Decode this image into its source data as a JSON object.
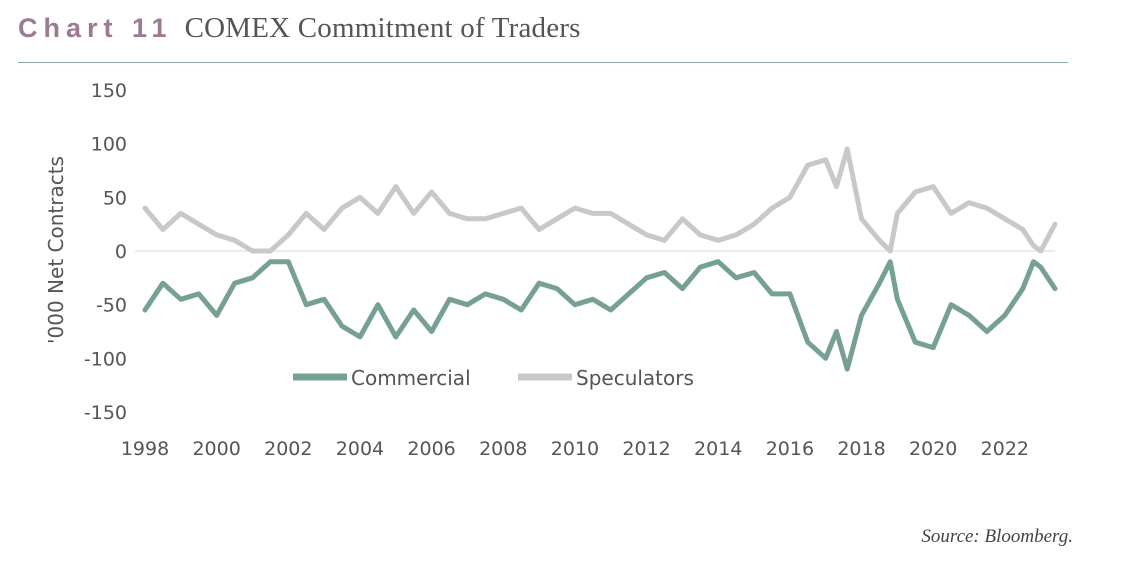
{
  "header": {
    "label": "Chart 11",
    "title": "COMEX Commitment of Traders"
  },
  "source": "Source: Bloomberg.",
  "colors": {
    "label": "#9c7a92",
    "commercial": "#77a095",
    "speculators": "#c8c8c8",
    "rule": "#8aa8a0",
    "zero_line": "#d9d9d9"
  },
  "chart_data": {
    "type": "line",
    "title": "COMEX Commitment of Traders",
    "xlabel": "",
    "ylabel": "'000 Net Contracts",
    "xlim": [
      1998,
      2023.4
    ],
    "ylim": [
      -150,
      150
    ],
    "yticks": [
      150,
      100,
      50,
      0,
      -50,
      -100,
      -150
    ],
    "xticks": [
      1998,
      2000,
      2002,
      2004,
      2006,
      2008,
      2010,
      2012,
      2014,
      2016,
      2018,
      2020,
      2022
    ],
    "legend_position": "bottom-center",
    "series": [
      {
        "name": "Commercial",
        "x": [
          1998,
          1998.5,
          1999,
          1999.5,
          2000,
          2000.5,
          2001,
          2001.5,
          2002,
          2002.5,
          2003,
          2003.5,
          2004,
          2004.5,
          2005,
          2005.5,
          2006,
          2006.5,
          2007,
          2007.5,
          2008,
          2008.5,
          2009,
          2009.5,
          2010,
          2010.5,
          2011,
          2011.5,
          2012,
          2012.5,
          2013,
          2013.5,
          2014,
          2014.5,
          2015,
          2015.5,
          2016,
          2016.5,
          2017,
          2017.3,
          2017.6,
          2018,
          2018.5,
          2018.8,
          2019,
          2019.5,
          2020,
          2020.5,
          2021,
          2021.5,
          2022,
          2022.5,
          2022.8,
          2023,
          2023.4
        ],
        "y": [
          -55,
          -30,
          -45,
          -40,
          -60,
          -30,
          -25,
          -10,
          -10,
          -50,
          -45,
          -70,
          -80,
          -50,
          -80,
          -55,
          -75,
          -45,
          -50,
          -40,
          -45,
          -55,
          -30,
          -35,
          -50,
          -45,
          -55,
          -40,
          -25,
          -20,
          -35,
          -15,
          -10,
          -25,
          -20,
          -40,
          -40,
          -85,
          -100,
          -75,
          -110,
          -60,
          -30,
          -10,
          -45,
          -85,
          -90,
          -50,
          -60,
          -75,
          -60,
          -35,
          -10,
          -15,
          -35
        ]
      },
      {
        "name": "Speculators",
        "x": [
          1998,
          1998.5,
          1999,
          1999.5,
          2000,
          2000.5,
          2001,
          2001.5,
          2002,
          2002.5,
          2003,
          2003.5,
          2004,
          2004.5,
          2005,
          2005.5,
          2006,
          2006.5,
          2007,
          2007.5,
          2008,
          2008.5,
          2009,
          2009.5,
          2010,
          2010.5,
          2011,
          2011.5,
          2012,
          2012.5,
          2013,
          2013.5,
          2014,
          2014.5,
          2015,
          2015.5,
          2016,
          2016.5,
          2017,
          2017.3,
          2017.6,
          2018,
          2018.5,
          2018.8,
          2019,
          2019.5,
          2020,
          2020.5,
          2021,
          2021.5,
          2022,
          2022.5,
          2022.8,
          2023,
          2023.4
        ],
        "y": [
          40,
          20,
          35,
          25,
          15,
          10,
          0,
          0,
          15,
          35,
          20,
          40,
          50,
          35,
          60,
          35,
          55,
          35,
          30,
          30,
          35,
          40,
          20,
          30,
          40,
          35,
          35,
          25,
          15,
          10,
          30,
          15,
          10,
          15,
          25,
          40,
          50,
          80,
          85,
          60,
          95,
          30,
          10,
          0,
          35,
          55,
          60,
          35,
          45,
          40,
          30,
          20,
          5,
          0,
          25
        ]
      }
    ]
  }
}
